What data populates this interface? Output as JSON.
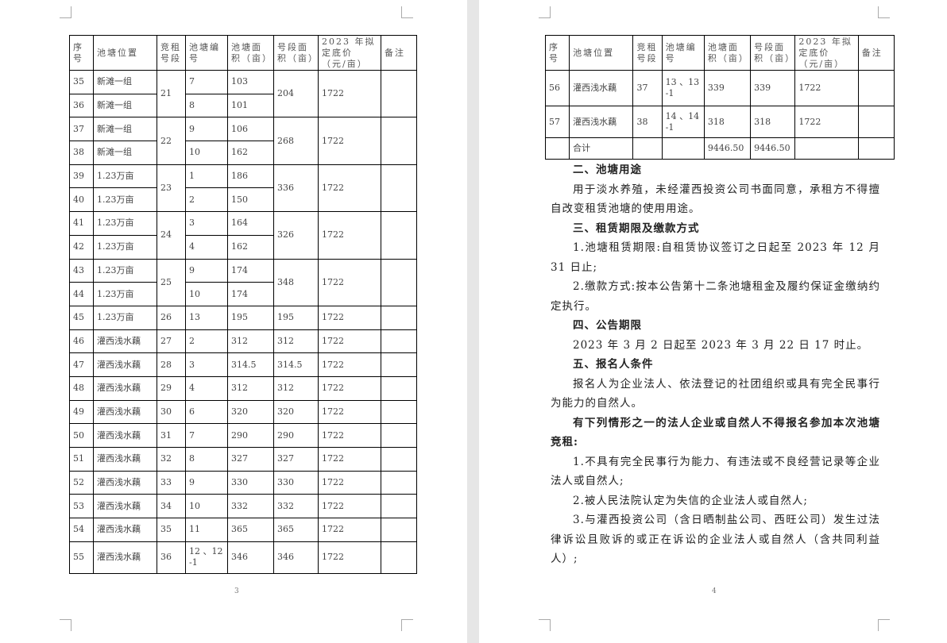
{
  "headers": [
    "序号",
    "池塘位置",
    "竞租号段",
    "池塘编号",
    "池塘面积（亩）",
    "号段面积（亩）",
    "2023 年拟定底价（元/亩）",
    "备注"
  ],
  "page3": {
    "page_number": "3",
    "rows": [
      [
        "35",
        "新滩一组",
        "21",
        "7",
        "103",
        "204",
        "1722",
        ""
      ],
      [
        "36",
        "新滩一组",
        "",
        "8",
        "101",
        "",
        "",
        ""
      ],
      [
        "37",
        "新滩一组",
        "22",
        "9",
        "106",
        "268",
        "1722",
        ""
      ],
      [
        "38",
        "新滩一组",
        "",
        "10",
        "162",
        "",
        "",
        ""
      ],
      [
        "39",
        "1.23万亩",
        "23",
        "1",
        "186",
        "336",
        "1722",
        ""
      ],
      [
        "40",
        "1.23万亩",
        "",
        "2",
        "150",
        "",
        "",
        ""
      ],
      [
        "41",
        "1.23万亩",
        "24",
        "3",
        "164",
        "326",
        "1722",
        ""
      ],
      [
        "42",
        "1.23万亩",
        "",
        "4",
        "162",
        "",
        "",
        ""
      ],
      [
        "43",
        "1.23万亩",
        "25",
        "9",
        "174",
        "348",
        "1722",
        ""
      ],
      [
        "44",
        "1.23万亩",
        "",
        "10",
        "174",
        "",
        "",
        ""
      ],
      [
        "45",
        "1.23万亩",
        "26",
        "13",
        "195",
        "195",
        "1722",
        ""
      ],
      [
        "46",
        "灌西浅水藕",
        "27",
        "2",
        "312",
        "312",
        "1722",
        ""
      ],
      [
        "47",
        "灌西浅水藕",
        "28",
        "3",
        "314.5",
        "314.5",
        "1722",
        ""
      ],
      [
        "48",
        "灌西浅水藕",
        "29",
        "4",
        "312",
        "312",
        "1722",
        ""
      ],
      [
        "49",
        "灌西浅水藕",
        "30",
        "6",
        "320",
        "320",
        "1722",
        ""
      ],
      [
        "50",
        "灌西浅水藕",
        "31",
        "7",
        "290",
        "290",
        "1722",
        ""
      ],
      [
        "51",
        "灌西浅水藕",
        "32",
        "8",
        "327",
        "327",
        "1722",
        ""
      ],
      [
        "52",
        "灌西浅水藕",
        "33",
        "9",
        "330",
        "330",
        "1722",
        ""
      ],
      [
        "53",
        "灌西浅水藕",
        "34",
        "10",
        "332",
        "332",
        "1722",
        ""
      ],
      [
        "54",
        "灌西浅水藕",
        "35",
        "11",
        "365",
        "365",
        "1722",
        ""
      ],
      [
        "55",
        "灌西浅水藕",
        "36",
        "12 、12-1",
        "346",
        "346",
        "1722",
        ""
      ]
    ]
  },
  "page4": {
    "page_number": "4",
    "rows": [
      [
        "56",
        "灌西浅水藕",
        "37",
        "13 、13-1",
        "339",
        "339",
        "1722",
        ""
      ],
      [
        "57",
        "灌西浅水藕",
        "38",
        "14 、14-1",
        "318",
        "318",
        "1722",
        ""
      ],
      [
        "",
        "合计",
        "",
        "",
        "9446.50",
        "9446.50",
        "",
        ""
      ]
    ],
    "paragraphs": [
      {
        "bold": true,
        "text": "二、池塘用途"
      },
      {
        "bold": false,
        "text": "用于淡水养殖，未经灌西投资公司书面同意，承租方不得擅自改变租赁池塘的使用用途。"
      },
      {
        "bold": true,
        "text": "三、租赁期限及缴款方式"
      },
      {
        "bold": false,
        "text": "1.池塘租赁期限:自租赁协议签订之日起至 2023 年 12 月 31 日止;"
      },
      {
        "bold": false,
        "text": "2.缴款方式:按本公告第十二条池塘租金及履约保证金缴纳约定执行。"
      },
      {
        "bold": true,
        "text": "四、公告期限"
      },
      {
        "bold": false,
        "text": "2023 年 3 月 2 日起至 2023 年 3 月 22 日 17 时止。"
      },
      {
        "bold": true,
        "text": "五、报名人条件"
      },
      {
        "bold": false,
        "text": "报名人为企业法人、依法登记的社团组织或具有完全民事行为能力的自然人。"
      },
      {
        "bold": true,
        "text": "有下列情形之一的法人企业或自然人不得报名参加本次池塘竞租:"
      },
      {
        "bold": false,
        "text": "1.不具有完全民事行为能力、有违法或不良经营记录等企业法人或自然人;"
      },
      {
        "bold": false,
        "text": "2.被人民法院认定为失信的企业法人或自然人;"
      },
      {
        "bold": false,
        "text": "3.与灌西投资公司（含日晒制盐公司、西旺公司）发生过法律诉讼且败诉的或正在诉讼的企业法人或自然人（含共同利益人）;"
      }
    ]
  }
}
